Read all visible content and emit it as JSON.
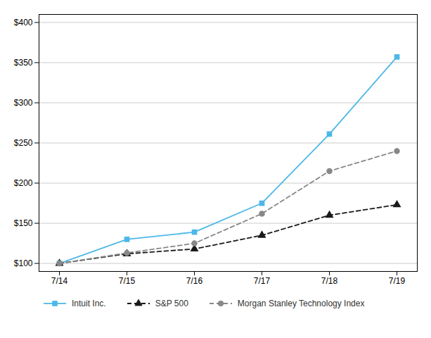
{
  "chart_data": {
    "type": "line",
    "categories": [
      "7/14",
      "7/15",
      "7/16",
      "7/17",
      "7/18",
      "7/19"
    ],
    "series": [
      {
        "name": "Intuit Inc.",
        "color": "#4db8e8",
        "marker": "square",
        "line_style": "solid",
        "values": [
          100,
          130,
          139,
          175,
          261,
          357
        ]
      },
      {
        "name": "S&P 500",
        "color": "#1a1a1a",
        "marker": "triangle",
        "line_style": "dashed",
        "values": [
          100,
          112,
          118,
          135,
          160,
          173
        ]
      },
      {
        "name": "Morgan Stanley Technology Index",
        "color": "#888888",
        "marker": "circle",
        "line_style": "dashed",
        "values": [
          100,
          113,
          125,
          162,
          215,
          240
        ]
      }
    ],
    "ylim": [
      90,
      410
    ],
    "yticks": [
      {
        "value": 100,
        "label": "$100"
      },
      {
        "value": 150,
        "label": "$150"
      },
      {
        "value": 200,
        "label": "$200"
      },
      {
        "value": 250,
        "label": "$250"
      },
      {
        "value": 300,
        "label": "$300"
      },
      {
        "value": 350,
        "label": "$350"
      },
      {
        "value": 400,
        "label": "$400"
      }
    ],
    "grid": true,
    "legend": "bottom"
  }
}
